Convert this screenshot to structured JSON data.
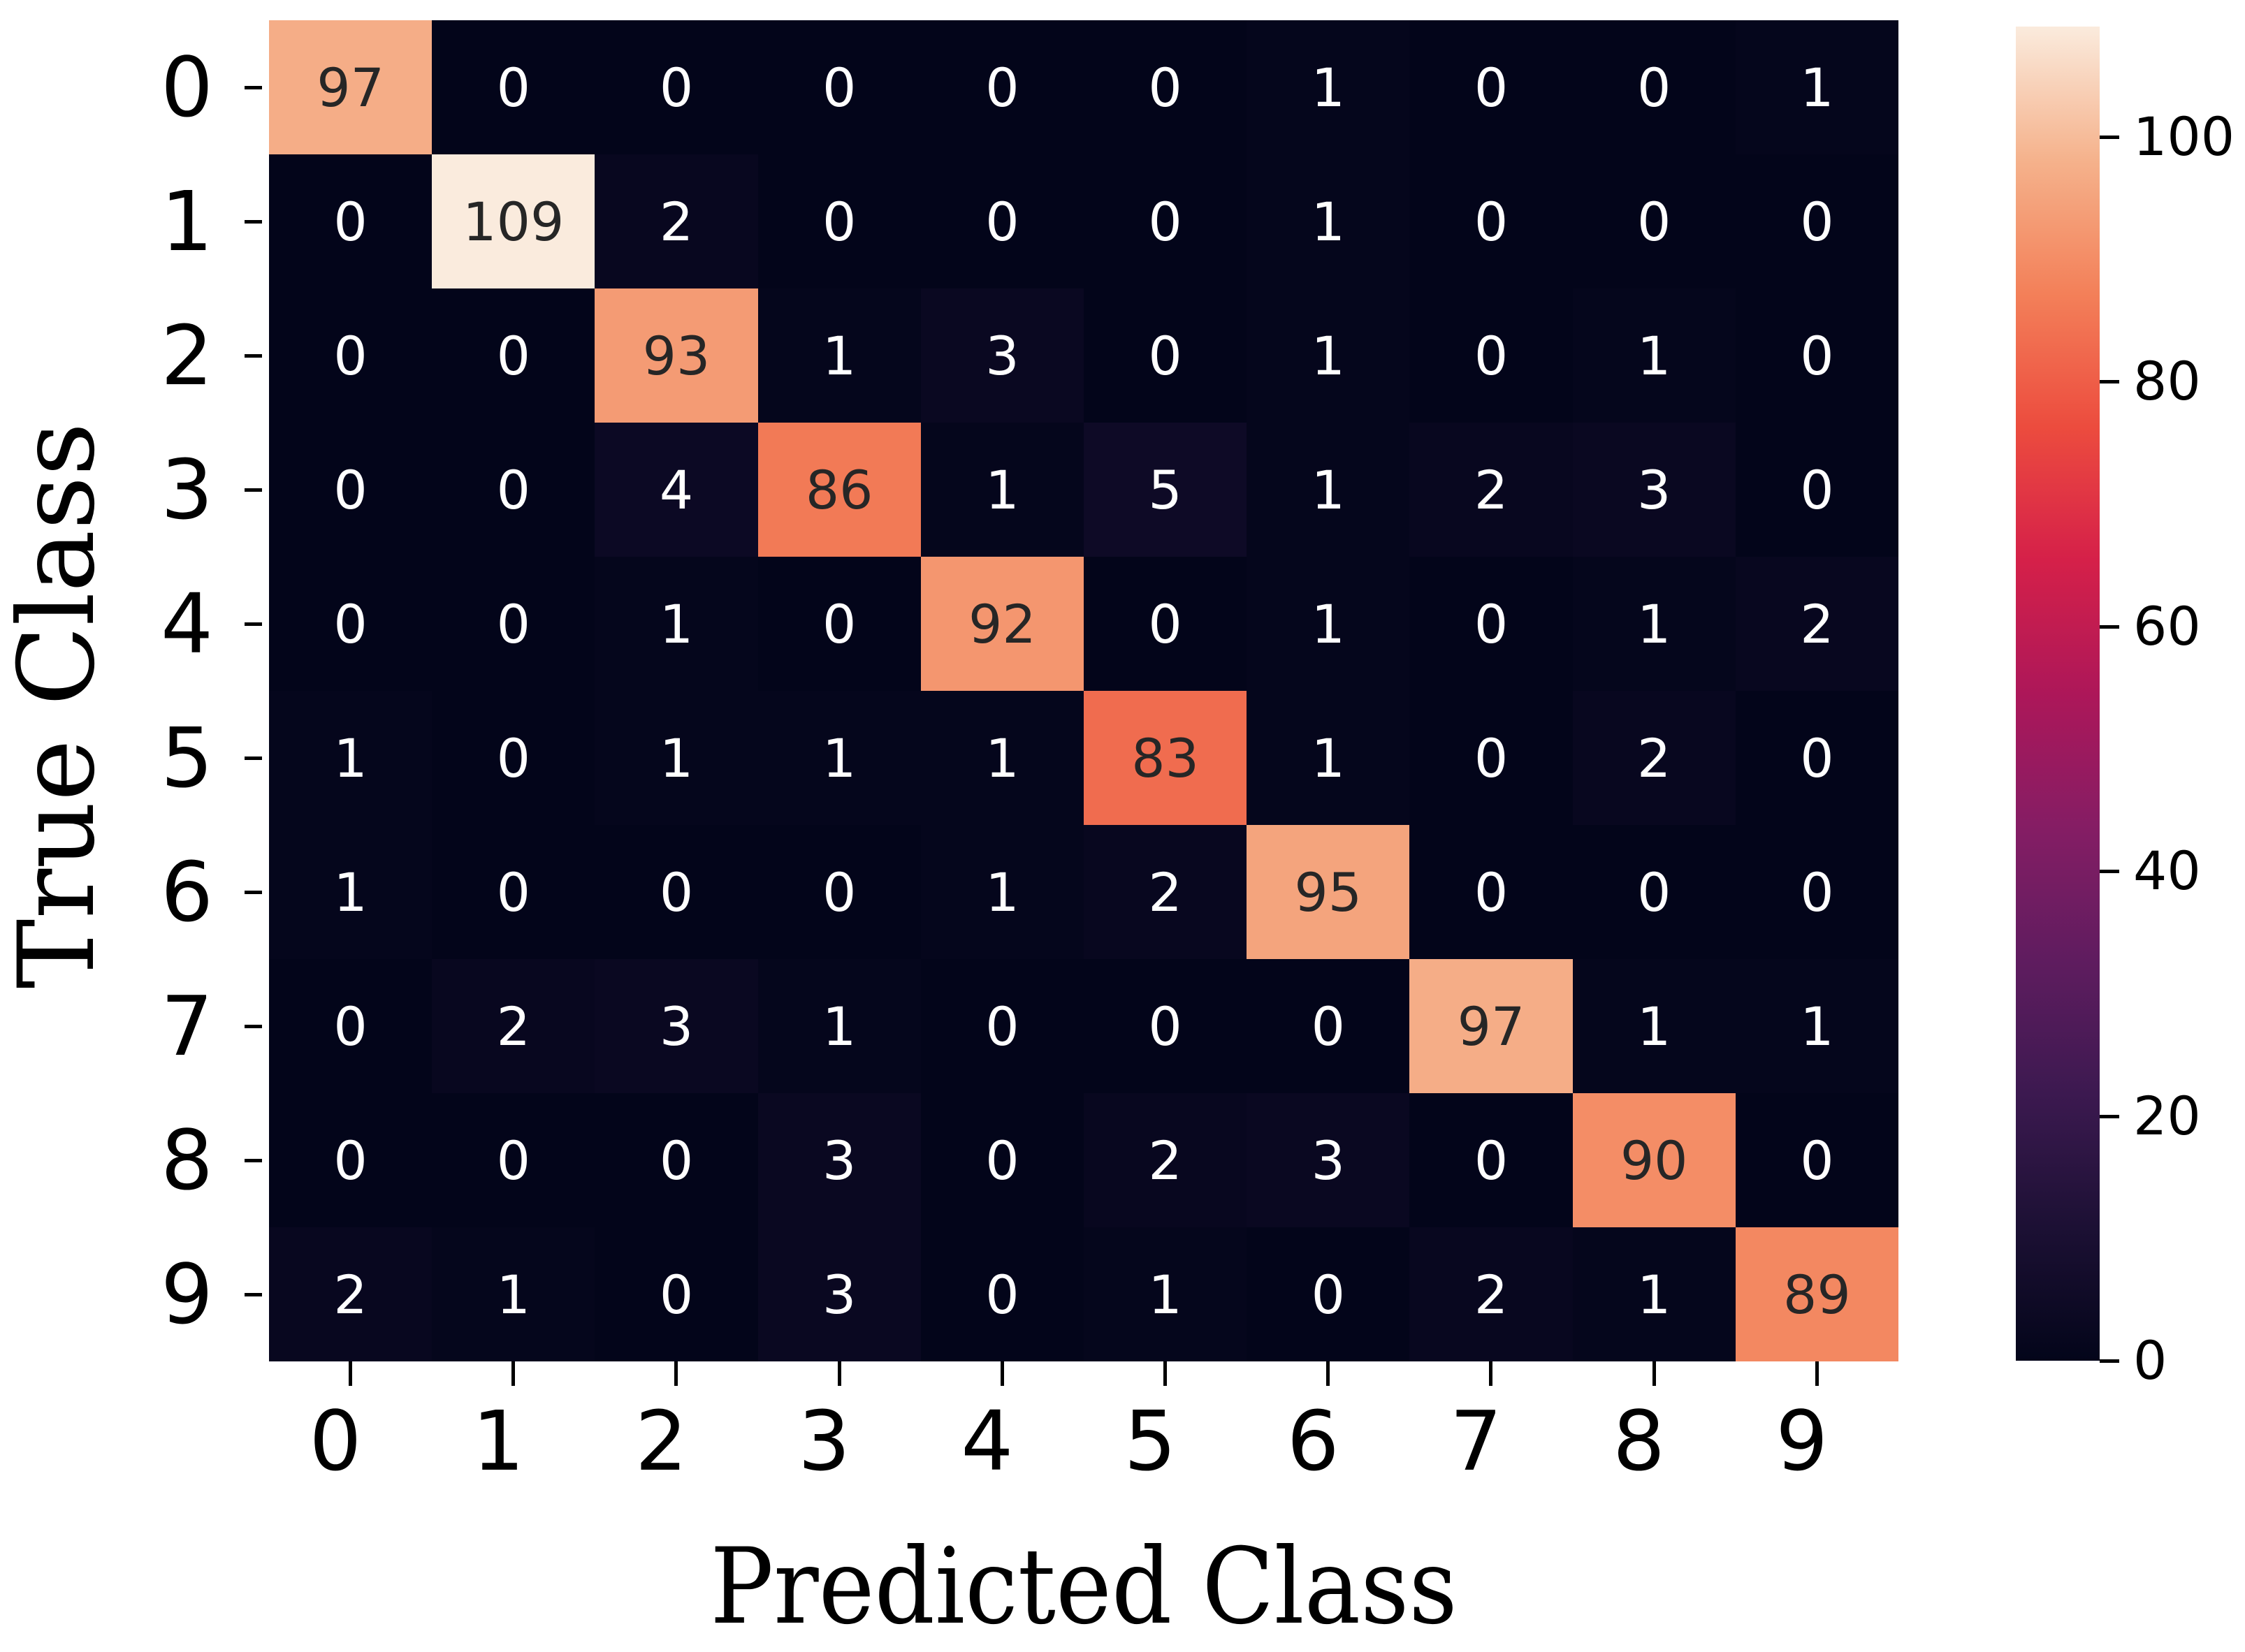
{
  "chart_data": {
    "type": "heatmap",
    "title": "",
    "xlabel": "Predicted Class",
    "ylabel": "True Class",
    "x_categories": [
      "0",
      "1",
      "2",
      "3",
      "4",
      "5",
      "6",
      "7",
      "8",
      "9"
    ],
    "y_categories": [
      "0",
      "1",
      "2",
      "3",
      "4",
      "5",
      "6",
      "7",
      "8",
      "9"
    ],
    "matrix": [
      [
        97,
        0,
        0,
        0,
        0,
        0,
        1,
        0,
        0,
        1
      ],
      [
        0,
        109,
        2,
        0,
        0,
        0,
        1,
        0,
        0,
        0
      ],
      [
        0,
        0,
        93,
        1,
        3,
        0,
        1,
        0,
        1,
        0
      ],
      [
        0,
        0,
        4,
        86,
        1,
        5,
        1,
        2,
        3,
        0
      ],
      [
        0,
        0,
        1,
        0,
        92,
        0,
        1,
        0,
        1,
        2
      ],
      [
        1,
        0,
        1,
        1,
        1,
        83,
        1,
        0,
        2,
        0
      ],
      [
        1,
        0,
        0,
        0,
        1,
        2,
        95,
        0,
        0,
        0
      ],
      [
        0,
        2,
        3,
        1,
        0,
        0,
        0,
        97,
        1,
        1
      ],
      [
        0,
        0,
        0,
        3,
        0,
        2,
        3,
        0,
        90,
        0
      ],
      [
        2,
        1,
        0,
        3,
        0,
        1,
        0,
        2,
        1,
        89
      ]
    ],
    "colorbar": {
      "colormap": "rocket",
      "range": [
        0,
        109
      ],
      "ticks": [
        0,
        20,
        40,
        60,
        80,
        100
      ],
      "tick_labels": [
        "0",
        "20",
        "40",
        "60",
        "80",
        "100"
      ]
    },
    "annotations": true,
    "grid": false
  },
  "axis": {
    "xlabel": "Predicted Class",
    "ylabel": "True Class"
  }
}
